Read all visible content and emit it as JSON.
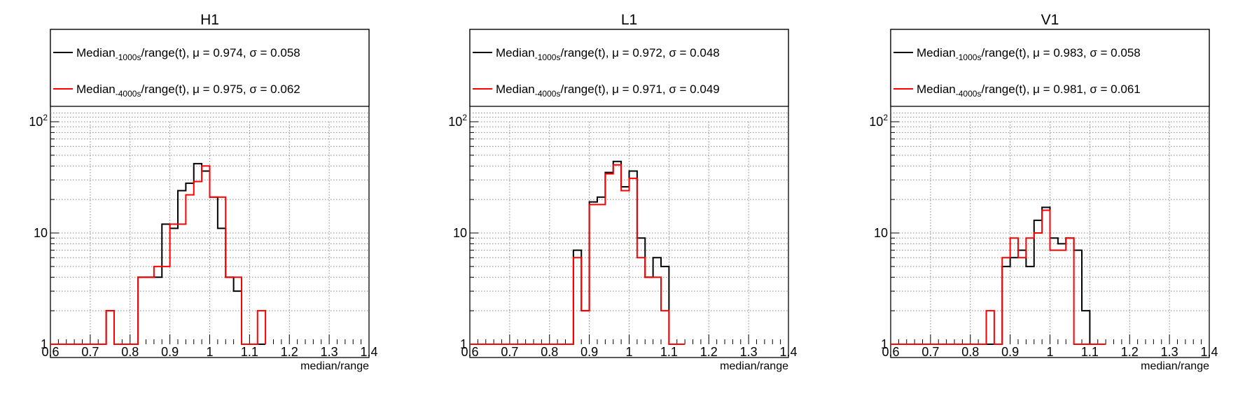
{
  "chart_data": [
    {
      "type": "histogram",
      "title": "H1",
      "xlabel": "median/range",
      "xlim": [
        0.6,
        1.4
      ],
      "ylim": [
        1,
        200
      ],
      "log_y": true,
      "grid": true,
      "x_ticks": [
        "0.6",
        "0.7",
        "0.8",
        "0.9",
        "1",
        "1.1",
        "1.2",
        "1.3",
        "1.4"
      ],
      "y_ticks": [
        {
          "value": 1,
          "label": "1"
        },
        {
          "value": 10,
          "label": "10"
        }
      ],
      "y_tick_top": {
        "base": "10",
        "exp": "2"
      },
      "bin_edges": [
        0.62,
        0.64,
        0.66,
        0.68,
        0.7,
        0.72,
        0.74,
        0.76,
        0.78,
        0.8,
        0.82,
        0.84,
        0.86,
        0.88,
        0.9,
        0.92,
        0.94,
        0.96,
        0.98,
        1.0,
        1.02,
        1.04,
        1.06,
        1.08,
        1.1,
        1.12,
        1.14
      ],
      "series": [
        {
          "color": "#000000",
          "legend": {
            "pre": "Median",
            "sub": "-1000s",
            "post": "/range(t), μ = 0.974, σ = 0.058"
          },
          "values": [
            1,
            1,
            1,
            1,
            1,
            1,
            2,
            1,
            1,
            1,
            4,
            4,
            4,
            12,
            11,
            24,
            28,
            42,
            36,
            21,
            11,
            4,
            3,
            1,
            1,
            1,
            1
          ]
        },
        {
          "color": "#ff0000",
          "legend": {
            "pre": "Median",
            "sub": "-4000s",
            "post": "/range(t), μ = 0.975, σ = 0.062"
          },
          "values": [
            1,
            1,
            1,
            1,
            1,
            1,
            2,
            1,
            1,
            1,
            4,
            4,
            5,
            5,
            12,
            12,
            22,
            29,
            40,
            21,
            21,
            4,
            4,
            1,
            1,
            2,
            1
          ]
        }
      ]
    },
    {
      "type": "histogram",
      "title": "L1",
      "xlabel": "median/range",
      "xlim": [
        0.6,
        1.4
      ],
      "ylim": [
        1,
        200
      ],
      "log_y": true,
      "grid": true,
      "x_ticks": [
        "0.6",
        "0.7",
        "0.8",
        "0.9",
        "1",
        "1.1",
        "1.2",
        "1.3",
        "1.4"
      ],
      "y_ticks": [
        {
          "value": 1,
          "label": "1"
        },
        {
          "value": 10,
          "label": "10"
        }
      ],
      "y_tick_top": {
        "base": "10",
        "exp": "2"
      },
      "bin_edges": [
        0.62,
        0.64,
        0.66,
        0.68,
        0.7,
        0.72,
        0.74,
        0.76,
        0.78,
        0.8,
        0.82,
        0.84,
        0.86,
        0.88,
        0.9,
        0.92,
        0.94,
        0.96,
        0.98,
        1.0,
        1.02,
        1.04,
        1.06,
        1.08,
        1.1,
        1.12,
        1.14
      ],
      "series": [
        {
          "color": "#000000",
          "legend": {
            "pre": "Median",
            "sub": "-1000s",
            "post": "/range(t), μ = 0.972, σ = 0.048"
          },
          "values": [
            1,
            1,
            1,
            1,
            1,
            1,
            1,
            1,
            1,
            1,
            1,
            1,
            7,
            2,
            19,
            21,
            35,
            44,
            26,
            36,
            9,
            4,
            6,
            5,
            1,
            1,
            1
          ]
        },
        {
          "color": "#ff0000",
          "legend": {
            "pre": "Median",
            "sub": "-4000s",
            "post": "/range(t), μ = 0.971, σ = 0.049"
          },
          "values": [
            1,
            1,
            1,
            1,
            1,
            1,
            1,
            1,
            1,
            1,
            1,
            1,
            6,
            2,
            18,
            18,
            34,
            41,
            24,
            31,
            6,
            4,
            4,
            2,
            1,
            1,
            1
          ]
        }
      ]
    },
    {
      "type": "histogram",
      "title": "V1",
      "xlabel": "median/range",
      "xlim": [
        0.6,
        1.4
      ],
      "ylim": [
        1,
        200
      ],
      "log_y": true,
      "grid": true,
      "x_ticks": [
        "0.6",
        "0.7",
        "0.8",
        "0.9",
        "1",
        "1.1",
        "1.2",
        "1.3",
        "1.4"
      ],
      "y_ticks": [
        {
          "value": 1,
          "label": "1"
        },
        {
          "value": 10,
          "label": "10"
        }
      ],
      "y_tick_top": {
        "base": "10",
        "exp": "2"
      },
      "bin_edges": [
        0.62,
        0.64,
        0.66,
        0.68,
        0.7,
        0.72,
        0.74,
        0.76,
        0.78,
        0.8,
        0.82,
        0.84,
        0.86,
        0.88,
        0.9,
        0.92,
        0.94,
        0.96,
        0.98,
        1.0,
        1.02,
        1.04,
        1.06,
        1.08,
        1.1,
        1.12,
        1.14
      ],
      "series": [
        {
          "color": "#000000",
          "legend": {
            "pre": "Median",
            "sub": "-1000s",
            "post": "/range(t), μ = 0.983, σ = 0.058"
          },
          "values": [
            1,
            1,
            1,
            1,
            1,
            1,
            1,
            1,
            1,
            1,
            1,
            1,
            1,
            5,
            6,
            7,
            5,
            13,
            17,
            9,
            8,
            9,
            7,
            2,
            1,
            1,
            1
          ]
        },
        {
          "color": "#ff0000",
          "legend": {
            "pre": "Median",
            "sub": "-4000s",
            "post": "/range(t), μ = 0.981, σ = 0.061"
          },
          "values": [
            1,
            1,
            1,
            1,
            1,
            1,
            1,
            1,
            1,
            1,
            1,
            2,
            1,
            6,
            9,
            6,
            9,
            10,
            16,
            7,
            7,
            9,
            1,
            1,
            1,
            1,
            1
          ]
        }
      ]
    }
  ]
}
